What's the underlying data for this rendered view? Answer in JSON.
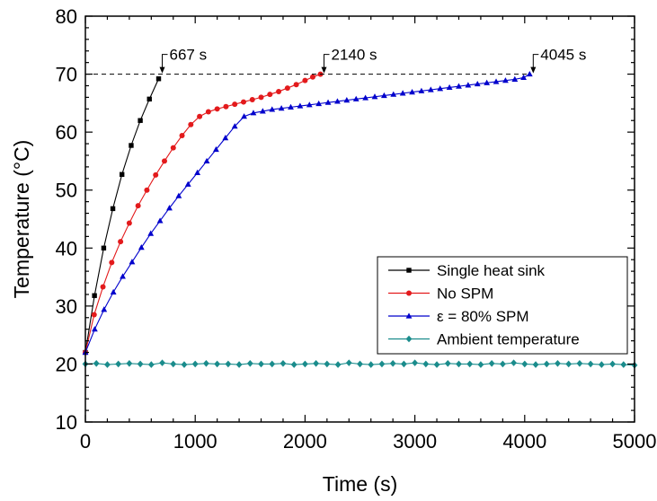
{
  "chart_data": {
    "type": "line",
    "xlabel": "Time (s)",
    "ylabel": "Temperature (°C)",
    "xlim": [
      0,
      5000
    ],
    "ylim": [
      10,
      80
    ],
    "xticks": [
      0,
      1000,
      2000,
      3000,
      4000,
      5000
    ],
    "yticks": [
      10,
      20,
      30,
      40,
      50,
      60,
      70,
      80
    ],
    "threshold": 70,
    "legend_position": "right",
    "series": [
      {
        "name": "Single heat sink",
        "color": "#000000",
        "marker": "square",
        "x": [
          0,
          83,
          167,
          250,
          333,
          417,
          500,
          583,
          667
        ],
        "y": [
          22,
          31.8,
          40,
          46.8,
          52.7,
          57.7,
          62,
          65.7,
          69.2
        ]
      },
      {
        "name": "No SPM",
        "color": "#e31a1c",
        "marker": "circle",
        "x": [
          0,
          80,
          160,
          240,
          320,
          400,
          480,
          560,
          640,
          720,
          800,
          880,
          960,
          1040,
          1120,
          1200,
          1280,
          1360,
          1440,
          1520,
          1600,
          1680,
          1760,
          1840,
          1920,
          2000,
          2070,
          2140
        ],
        "y": [
          22,
          28.5,
          33.3,
          37.5,
          41.1,
          44.3,
          47.3,
          50.0,
          52.6,
          55.0,
          57.3,
          59.4,
          61.3,
          62.7,
          63.5,
          64.0,
          64.4,
          64.8,
          65.2,
          65.6,
          66.0,
          66.5,
          67.0,
          67.6,
          68.2,
          68.9,
          69.5,
          70.0
        ]
      },
      {
        "name": "ε = 80% SPM",
        "color": "#0000cc",
        "marker": "triangle",
        "x": [
          0,
          85,
          170,
          255,
          340,
          425,
          510,
          595,
          680,
          765,
          850,
          935,
          1020,
          1105,
          1190,
          1275,
          1360,
          1445,
          1530,
          1615,
          1700,
          1785,
          1870,
          1955,
          2040,
          2125,
          2210,
          2295,
          2380,
          2465,
          2550,
          2635,
          2720,
          2805,
          2890,
          2975,
          3060,
          3145,
          3230,
          3315,
          3400,
          3485,
          3570,
          3655,
          3740,
          3825,
          3910,
          3990,
          4045
        ],
        "y": [
          22,
          26.0,
          29.4,
          32.4,
          35.1,
          37.6,
          40.1,
          42.5,
          44.7,
          46.9,
          49.0,
          51.0,
          53.0,
          55.0,
          57.0,
          59.0,
          61.0,
          62.7,
          63.3,
          63.6,
          63.9,
          64.1,
          64.3,
          64.5,
          64.7,
          64.9,
          65.1,
          65.3,
          65.5,
          65.7,
          65.9,
          66.1,
          66.3,
          66.5,
          66.7,
          66.9,
          67.1,
          67.3,
          67.5,
          67.7,
          67.9,
          68.1,
          68.3,
          68.5,
          68.7,
          68.9,
          69.1,
          69.4,
          70.0
        ]
      },
      {
        "name": "Ambient temperature",
        "color": "#1a8c8c",
        "marker": "diamond",
        "x": [
          0,
          100,
          200,
          300,
          400,
          500,
          600,
          700,
          800,
          900,
          1000,
          1100,
          1200,
          1300,
          1400,
          1500,
          1600,
          1700,
          1800,
          1900,
          2000,
          2100,
          2200,
          2300,
          2400,
          2500,
          2600,
          2700,
          2800,
          2900,
          3000,
          3100,
          3200,
          3300,
          3400,
          3500,
          3600,
          3700,
          3800,
          3900,
          4000,
          4100,
          4200,
          4300,
          4400,
          4500,
          4600,
          4700,
          4800,
          4900,
          5000
        ],
        "y": [
          20.0,
          20.1,
          19.9,
          20.0,
          20.1,
          20.0,
          19.9,
          20.2,
          20.0,
          19.9,
          20.0,
          20.1,
          20.0,
          20.0,
          19.9,
          20.1,
          20.0,
          20.0,
          20.1,
          19.9,
          20.0,
          20.1,
          20.0,
          19.9,
          20.2,
          20.0,
          19.9,
          20.0,
          20.1,
          20.0,
          20.2,
          20.0,
          19.9,
          20.1,
          20.0,
          20.0,
          19.9,
          20.1,
          20.0,
          20.2,
          20.0,
          19.9,
          20.0,
          20.1,
          20.0,
          20.1,
          20.0,
          19.9,
          20.0,
          19.9,
          19.8
        ]
      }
    ],
    "annotations": [
      {
        "text": "667 s",
        "x": 667,
        "y": 70
      },
      {
        "text": "2140 s",
        "x": 2140,
        "y": 70
      },
      {
        "text": "4045 s",
        "x": 4045,
        "y": 70
      }
    ]
  }
}
